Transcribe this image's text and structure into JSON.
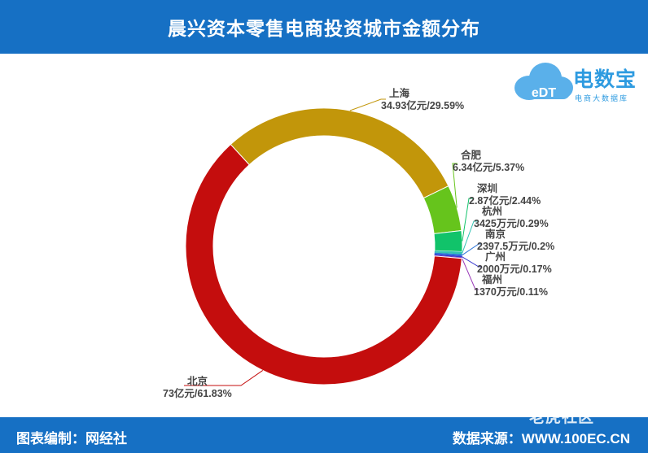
{
  "header": {
    "title": "晨兴资本零售电商投资城市金额分布"
  },
  "footer": {
    "left": "图表编制：网经社",
    "right": "数据来源：WWW.100EC.CN"
  },
  "logo": {
    "brand": "电数宝",
    "sub": "电商大数据库",
    "mark": "eDT"
  },
  "watermark": {
    "text": "老虎社区"
  },
  "colors": {
    "header": "#1670c4",
    "footer": "#1670c4"
  },
  "chart_data": {
    "type": "pie",
    "donut": true,
    "categories": [
      "上海",
      "合肥",
      "深圳",
      "杭州",
      "南京",
      "广州",
      "福州",
      "北京"
    ],
    "values": [
      29.59,
      5.37,
      2.44,
      0.29,
      0.2,
      0.17,
      0.11,
      61.83
    ],
    "colors": [
      "#c2960a",
      "#66c41c",
      "#11c36a",
      "#33c4b4",
      "#2b74d8",
      "#3838d0",
      "#9a3ab8",
      "#c40d0d"
    ],
    "labels": [
      {
        "name": "上海",
        "text": "34.93亿元/29.59%"
      },
      {
        "name": "合肥",
        "text": "6.34亿元/5.37%"
      },
      {
        "name": "深圳",
        "text": "2.87亿元/2.44%"
      },
      {
        "name": "杭州",
        "text": "3425万元/0.29%"
      },
      {
        "name": "南京",
        "text": "2397.5万元/0.2%"
      },
      {
        "name": "广州",
        "text": "2000万元/0.17%"
      },
      {
        "name": "福州",
        "text": "1370万元/0.11%"
      },
      {
        "name": "北京",
        "text": "73亿元/61.83%"
      }
    ]
  }
}
